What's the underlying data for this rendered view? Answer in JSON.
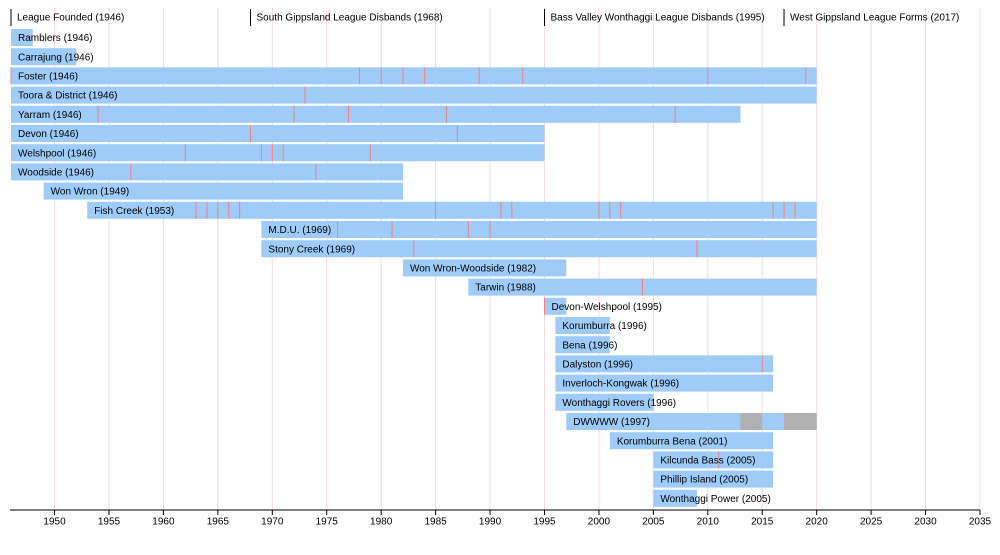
{
  "chart_data": {
    "type": "timeline",
    "xlim": [
      1946,
      2035
    ],
    "xticks": [
      1950,
      1955,
      1960,
      1965,
      1970,
      1975,
      1980,
      1985,
      1990,
      1995,
      2000,
      2005,
      2010,
      2015,
      2020,
      2025,
      2030,
      2035
    ],
    "grid": true,
    "color": "#9fcbf9",
    "recess_color": "#b0b0b0",
    "premiership_color": "#f08080",
    "grid_color": "#f6d9d9",
    "events": [
      {
        "label": "League Founded (1946)",
        "year": 1946
      },
      {
        "label": "South Gippsland League Disbands (1968)",
        "year": 1968
      },
      {
        "label": "Bass Valley Wonthaggi League Disbands (1995)",
        "year": 1995
      },
      {
        "label": "West Gippsland League Forms (2017)",
        "year": 2017
      }
    ],
    "rows": [
      {
        "label": "Ramblers (1946)",
        "start": 1946,
        "end": 1948,
        "premierships": []
      },
      {
        "label": "Carrajung (1946)",
        "start": 1946,
        "end": 1952,
        "premierships": []
      },
      {
        "label": "Foster (1946)",
        "start": 1946,
        "end": 2020,
        "premierships": [
          1946,
          1978,
          1980,
          1982,
          1984,
          1989,
          1993,
          2010,
          2019
        ]
      },
      {
        "label": "Toora & District (1946)",
        "start": 1946,
        "end": 2020,
        "premierships": [
          1973
        ]
      },
      {
        "label": "Yarram (1946)",
        "start": 1946,
        "end": 2013,
        "premierships": [
          1954,
          1972,
          1977,
          1986,
          2007
        ]
      },
      {
        "label": "Devon (1946)",
        "start": 1946,
        "end": 1995,
        "premierships": [
          1968,
          1987
        ]
      },
      {
        "label": "Welshpool (1946)",
        "start": 1946,
        "end": 1995,
        "premierships": [
          1962,
          1969,
          1970,
          1971,
          1979
        ]
      },
      {
        "label": "Woodside (1946)",
        "start": 1946,
        "end": 1982,
        "premierships": [
          1957,
          1974
        ]
      },
      {
        "label": "Won Wron (1949)",
        "start": 1949,
        "end": 1982,
        "premierships": []
      },
      {
        "label": "Fish Creek (1953)",
        "start": 1953,
        "end": 2020,
        "premierships": [
          1963,
          1964,
          1965,
          1966,
          1967,
          1985,
          1991,
          1992,
          2000,
          2001,
          2002,
          2016,
          2017,
          2018
        ]
      },
      {
        "label": "M.D.U. (1969)",
        "start": 1969,
        "end": 2020,
        "premierships": [
          1976,
          1981,
          1988,
          1990
        ]
      },
      {
        "label": "Stony Creek (1969)",
        "start": 1969,
        "end": 2020,
        "premierships": [
          1983,
          2009
        ]
      },
      {
        "label": "Won Wron-Woodside (1982)",
        "start": 1982,
        "end": 1997,
        "premierships": []
      },
      {
        "label": "Tarwin (1988)",
        "start": 1988,
        "end": 2020,
        "premierships": [
          2004
        ]
      },
      {
        "label": "Devon-Welshpool (1995)",
        "start": 1995,
        "end": 1997,
        "premierships": [
          1995
        ]
      },
      {
        "label": "Korumburra (1996)",
        "start": 1996,
        "end": 2001,
        "premierships": []
      },
      {
        "label": "Bena (1996)",
        "start": 1996,
        "end": 2001,
        "premierships": []
      },
      {
        "label": "Dalyston (1996)",
        "start": 1996,
        "end": 2016,
        "premierships": [
          2015
        ]
      },
      {
        "label": "Inverloch-Kongwak (1996)",
        "start": 1996,
        "end": 2016,
        "premierships": []
      },
      {
        "label": "Wonthaggi Rovers (1996)",
        "start": 1996,
        "end": 2005,
        "premierships": []
      },
      {
        "label": "DWWWW (1997)",
        "start": 1997,
        "end": 2020,
        "premierships": [],
        "recess": [
          [
            2013,
            2015
          ],
          [
            2017,
            2020
          ]
        ]
      },
      {
        "label": "Korumburra Bena (2001)",
        "start": 2001,
        "end": 2016,
        "premierships": []
      },
      {
        "label": "Kilcunda Bass (2005)",
        "start": 2005,
        "end": 2016,
        "premierships": [
          2011
        ]
      },
      {
        "label": "Phillip Island (2005)",
        "start": 2005,
        "end": 2016,
        "premierships": []
      },
      {
        "label": "Wonthaggi Power (2005)",
        "start": 2005,
        "end": 2009,
        "premierships": []
      }
    ]
  }
}
